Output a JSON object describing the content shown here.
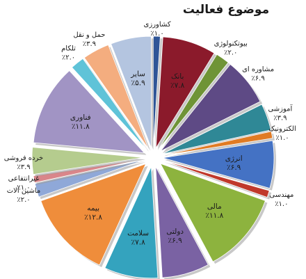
{
  "chart_data": {
    "type": "pie",
    "title": "موضوع فعالیت",
    "unit": "%",
    "legend": "none",
    "slices": [
      {
        "name": "کشاورزی",
        "value": 1.0,
        "label": "٪۱.۰",
        "color": "#2f5597"
      },
      {
        "name": "بانک",
        "value": 7.8,
        "label": "٪۷.۸",
        "color": "#8b1a2b"
      },
      {
        "name": "بیوتکنولوژی",
        "value": 2.0,
        "label": "٪۲.۰",
        "color": "#6f9436"
      },
      {
        "name": "مشاوره ای",
        "value": 6.9,
        "label": "٪۶.۹",
        "color": "#5e4a85"
      },
      {
        "name": "آموزشی",
        "value": 3.9,
        "label": "٪۳.۹",
        "color": "#2f8896"
      },
      {
        "name": "الکترونیک",
        "value": 1.0,
        "label": "٪۱.۰",
        "color": "#e07b24"
      },
      {
        "name": "انرژی",
        "value": 6.9,
        "label": "٪۶.۹",
        "color": "#4472c4"
      },
      {
        "name": "مهندسی",
        "value": 1.0,
        "label": "٪۱.۰",
        "color": "#c0392b"
      },
      {
        "name": "مالی",
        "value": 11.8,
        "label": "٪۱۱.۸",
        "color": "#8db33e"
      },
      {
        "name": "دولتی",
        "value": 6.9,
        "label": "٪۶.۹",
        "color": "#7a62a3"
      },
      {
        "name": "سلامت",
        "value": 7.8,
        "label": "٪۷.۸",
        "color": "#34a3be"
      },
      {
        "name": "بیمه",
        "value": 12.8,
        "label": "٪۱۲.۸",
        "color": "#ef8d3b"
      },
      {
        "name": "ماشین آلات",
        "value": 2.0,
        "label": "٪۲.۰",
        "color": "#8fa8d8"
      },
      {
        "name": "غیرانتفاعی",
        "value": 1.0,
        "label": "٪۱.۰",
        "color": "#d9868a"
      },
      {
        "name": "خرده فروشی",
        "value": 3.9,
        "label": "٪۳.۹",
        "color": "#b5cc8e"
      },
      {
        "name": "فناوری",
        "value": 11.8,
        "label": "٪۱۱.۸",
        "color": "#a194c4"
      },
      {
        "name": "تلکام",
        "value": 2.0,
        "label": "٪۲.۰",
        "color": "#5fc3d8"
      },
      {
        "name": "حمل و نقل",
        "value": 3.9,
        "label": "٪۳.۹",
        "color": "#f4ad7f"
      },
      {
        "name": "سایر",
        "value": 5.9,
        "label": "٪۵.۹",
        "color": "#b4c5e0"
      }
    ]
  }
}
